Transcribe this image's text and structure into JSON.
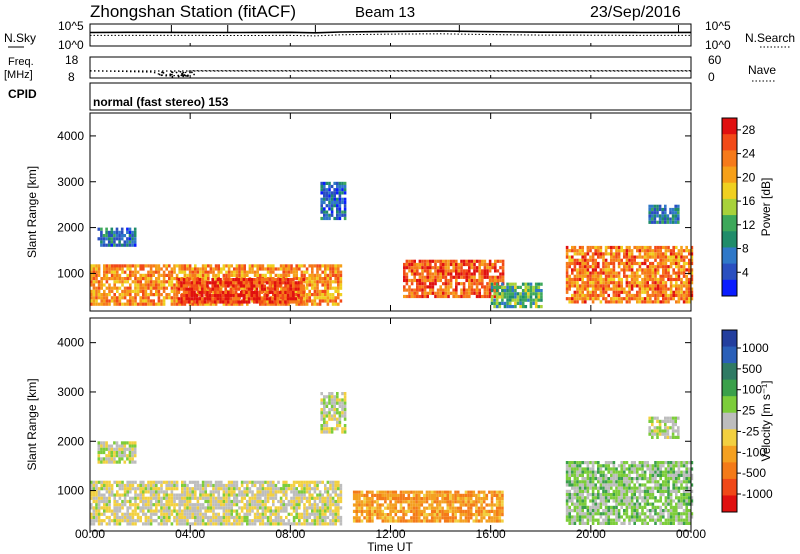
{
  "header": {
    "station": "Zhongshan Station (fitACF)",
    "beam": "Beam 13",
    "date": "23/Sep/2016"
  },
  "panels": {
    "noise": {
      "left_label": "N.Sky",
      "right_label": "N.Search",
      "left_ticks": [
        "10^5",
        "10^0"
      ],
      "right_ticks": [
        "10^5",
        "10^0"
      ]
    },
    "freq": {
      "left_label_1": "Freq.",
      "left_label_2": "[MHz]",
      "left_ticks": [
        "18",
        "8"
      ],
      "right_label": "Nave",
      "right_ticks": [
        "60",
        "0"
      ]
    },
    "cpid": {
      "label": "CPID",
      "text": "normal (fast stereo) 153"
    }
  },
  "colors": {
    "power_scale": [
      "#0a1cff",
      "#2a4fc0",
      "#2f78c8",
      "#1f8c6a",
      "#3da85a",
      "#a8d23a",
      "#f0d020",
      "#f6a019",
      "#f67a1a",
      "#f24a18",
      "#e01010"
    ],
    "velocity_scale": [
      "#233e9e",
      "#2a5fb8",
      "#2f7a64",
      "#3aa04a",
      "#7ccd3a",
      "#bdbdbd",
      "#f2d040",
      "#f4a020",
      "#f47a18",
      "#f04818",
      "#e01010"
    ]
  },
  "chart_data": [
    {
      "type": "line",
      "title": "",
      "panel": "noise",
      "ylabel": "N.Sky",
      "scale": "log",
      "ylim": [
        1,
        100000
      ],
      "xlim": [
        "00:00",
        "24:00"
      ],
      "series": [
        {
          "name": "N.Sky",
          "style": "solid",
          "x": [
            0,
            2,
            4,
            6,
            8,
            9,
            10,
            12,
            14,
            16,
            18,
            20,
            22,
            24
          ],
          "values": [
            1200,
            1300,
            1250,
            1200,
            1300,
            1000,
            1500,
            2000,
            2500,
            1800,
            1400,
            1300,
            1200,
            1250
          ]
        },
        {
          "name": "N.Search",
          "style": "dotted",
          "x": [
            0,
            2,
            4,
            6,
            8,
            9,
            10,
            12,
            14,
            16,
            18,
            20,
            22,
            24
          ],
          "values": [
            250,
            260,
            250,
            240,
            260,
            200,
            350,
            500,
            600,
            400,
            300,
            280,
            260,
            250
          ]
        }
      ]
    },
    {
      "type": "line",
      "title": "",
      "panel": "freq",
      "ylabel": "Freq. [MHz]",
      "ylim": [
        8,
        18
      ],
      "y2label": "Nave",
      "y2lim": [
        0,
        60
      ],
      "xlim": [
        "00:00",
        "24:00"
      ],
      "series": [
        {
          "name": "Freq",
          "style": "dotted",
          "x": [
            0,
            2.5,
            3,
            3.5,
            4,
            24
          ],
          "values": [
            11.5,
            10.8,
            9.0,
            9.2,
            11.5,
            11.5
          ]
        },
        {
          "name": "Nave",
          "style": "dotted",
          "x": [
            0,
            24
          ],
          "values": [
            20,
            20
          ]
        }
      ]
    },
    {
      "type": "heatmap",
      "title": "",
      "panel": "power",
      "xlabel": "",
      "ylabel": "Slant Range [km]",
      "xlim": [
        "00:00",
        "24:00"
      ],
      "ylim": [
        180,
        4500
      ],
      "yticks": [
        1000,
        2000,
        3000,
        4000
      ],
      "colorbar": {
        "label": "Power [dB]",
        "ticks": [
          4,
          8,
          12,
          16,
          20,
          24,
          28
        ],
        "range": [
          0,
          30
        ]
      },
      "regions": [
        {
          "t0": 0.0,
          "t1": 10.0,
          "r0": 300,
          "r1": 1200,
          "value": 22
        },
        {
          "t0": 3.5,
          "t1": 8.5,
          "r0": 350,
          "r1": 900,
          "value": 27
        },
        {
          "t0": 0.3,
          "t1": 1.8,
          "r0": 1600,
          "r1": 2000,
          "value": 7
        },
        {
          "t0": 9.2,
          "t1": 10.2,
          "r0": 2200,
          "r1": 3000,
          "value": 6
        },
        {
          "t0": 12.5,
          "t1": 16.5,
          "r0": 500,
          "r1": 1300,
          "value": 25
        },
        {
          "t0": 16.0,
          "t1": 18.0,
          "r0": 300,
          "r1": 800,
          "value": 12
        },
        {
          "t0": 19.0,
          "t1": 24.0,
          "r0": 350,
          "r1": 1600,
          "value": 23
        },
        {
          "t0": 22.3,
          "t1": 23.5,
          "r0": 2100,
          "r1": 2500,
          "value": 8
        }
      ]
    },
    {
      "type": "heatmap",
      "title": "",
      "panel": "velocity",
      "xlabel": "Time UT",
      "ylabel": "Slant Range [km]",
      "xlim": [
        "00:00",
        "24:00"
      ],
      "ylim": [
        180,
        4500
      ],
      "yticks": [
        1000,
        2000,
        3000,
        4000
      ],
      "xticks": [
        "00:00",
        "04:00",
        "08:00",
        "12:00",
        "16:00",
        "20:00",
        "00:00"
      ],
      "colorbar": {
        "label": "Velocity [m s⁻¹]",
        "ticks": [
          "1000",
          "500",
          "100",
          "25",
          "-25",
          "-100",
          "-500",
          "-1000"
        ],
        "range": [
          -1000,
          1000
        ]
      },
      "regions": [
        {
          "t0": 0.0,
          "t1": 10.0,
          "r0": 300,
          "r1": 1200,
          "value": -50
        },
        {
          "t0": 0.3,
          "t1": 1.8,
          "r0": 1600,
          "r1": 2000,
          "value": 0
        },
        {
          "t0": 9.2,
          "t1": 10.2,
          "r0": 2200,
          "r1": 3000,
          "value": 0
        },
        {
          "t0": 10.5,
          "t1": 16.5,
          "r0": 400,
          "r1": 1000,
          "value": -400
        },
        {
          "t0": 19.0,
          "t1": 24.0,
          "r0": 350,
          "r1": 1600,
          "value": 150
        },
        {
          "t0": 22.3,
          "t1": 23.5,
          "r0": 2100,
          "r1": 2500,
          "value": 50
        }
      ]
    }
  ]
}
